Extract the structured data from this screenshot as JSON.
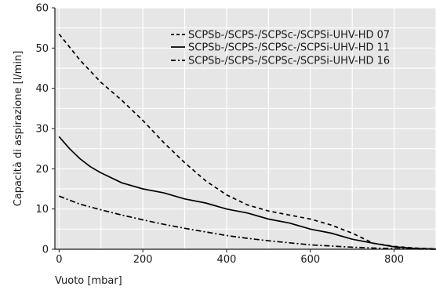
{
  "chart_data": {
    "type": "line",
    "xlabel": "Vuoto [mbar]",
    "ylabel": "Capacità di aspirazione [l/min]",
    "xlim": [
      -10,
      900
    ],
    "ylim": [
      0,
      60
    ],
    "xticks": [
      0,
      200,
      400,
      600,
      800
    ],
    "yticks": [
      0,
      10,
      20,
      30,
      40,
      50,
      60
    ],
    "grid": true,
    "legend_position": "top-right",
    "colors": {
      "background": "#e6e6e6",
      "grid": "#ffffff",
      "line": "#000000"
    },
    "series": [
      {
        "name": "SCPSb-/SCPS-/SCPSc-/SCPSi-UHV-HD 07",
        "style": "dashed",
        "x": [
          0,
          50,
          100,
          150,
          200,
          250,
          300,
          350,
          400,
          450,
          500,
          550,
          600,
          650,
          700,
          750,
          800,
          850,
          900
        ],
        "y": [
          53.5,
          47,
          41.5,
          37,
          32,
          26.5,
          21.5,
          17,
          13.5,
          11,
          9.5,
          8.5,
          7.5,
          6,
          4,
          1.5,
          0.7,
          0.3,
          0.1
        ]
      },
      {
        "name": "SCPSb-/SCPS-/SCPSc-/SCPSi-UHV-HD 11",
        "style": "solid",
        "x": [
          0,
          25,
          50,
          75,
          100,
          150,
          200,
          250,
          300,
          350,
          400,
          450,
          500,
          550,
          600,
          650,
          700,
          750,
          800,
          850,
          900
        ],
        "y": [
          28,
          25,
          22.5,
          20.5,
          19,
          16.5,
          15,
          14,
          12.5,
          11.5,
          10,
          9,
          7.5,
          6.5,
          5,
          4,
          2.5,
          1.5,
          0.6,
          0.2,
          0.05
        ]
      },
      {
        "name": "SCPSb-/SCPS-/SCPSc-/SCPSi-UHV-HD 16",
        "style": "dash-dot",
        "x": [
          0,
          50,
          100,
          150,
          200,
          250,
          300,
          350,
          400,
          450,
          500,
          550,
          600,
          650,
          700,
          750,
          800,
          850,
          900
        ],
        "y": [
          13.2,
          11.2,
          9.8,
          8.5,
          7.3,
          6.2,
          5.2,
          4.3,
          3.4,
          2.7,
          2.1,
          1.6,
          1.1,
          0.8,
          0.5,
          0.3,
          0.15,
          0.05,
          0
        ]
      }
    ]
  }
}
